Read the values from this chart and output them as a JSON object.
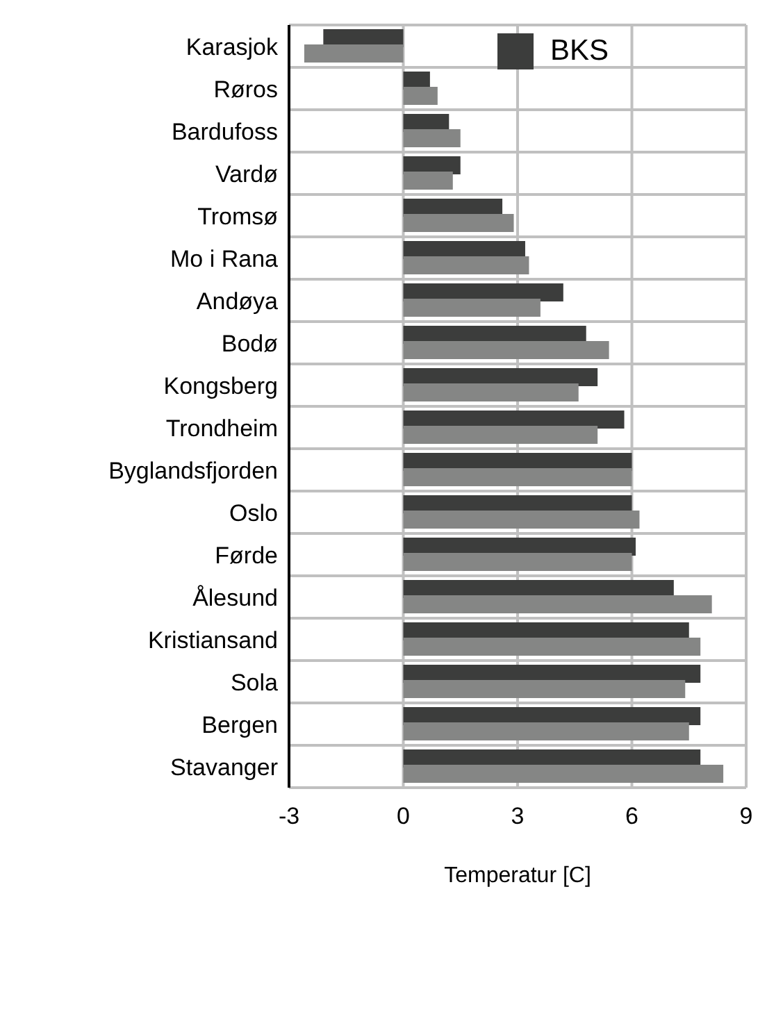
{
  "chart_data": {
    "type": "bar",
    "orientation": "horizontal",
    "xlabel": "Temperatur [C]",
    "categories": [
      "Karasjok",
      "Røros",
      "Bardufoss",
      "Vardø",
      "Tromsø",
      "Mo i Rana",
      "Andøya",
      "Bodø",
      "Kongsberg",
      "Trondheim",
      "Byglandsfjorden",
      "Oslo",
      "Førde",
      "Ålesund",
      "Kristiansand",
      "Sola",
      "Bergen",
      "Stavanger"
    ],
    "series": [
      {
        "name": "BKS",
        "color": "#3c3d3c",
        "values": [
          -2.1,
          0.7,
          1.2,
          1.5,
          2.6,
          3.2,
          4.2,
          4.8,
          5.1,
          5.8,
          6.0,
          6.0,
          6.1,
          7.1,
          7.5,
          7.8,
          7.8,
          7.8
        ]
      },
      {
        "color": "#858685",
        "values": [
          -2.6,
          0.9,
          1.5,
          1.3,
          2.9,
          3.3,
          3.6,
          5.4,
          4.6,
          5.1,
          6.0,
          6.2,
          6.0,
          8.1,
          7.8,
          7.4,
          7.5,
          8.4
        ]
      }
    ],
    "xlim": [
      -3,
      9
    ],
    "xticks": [
      -3,
      0,
      3,
      6,
      9
    ],
    "grid": true,
    "legend": "top right"
  }
}
